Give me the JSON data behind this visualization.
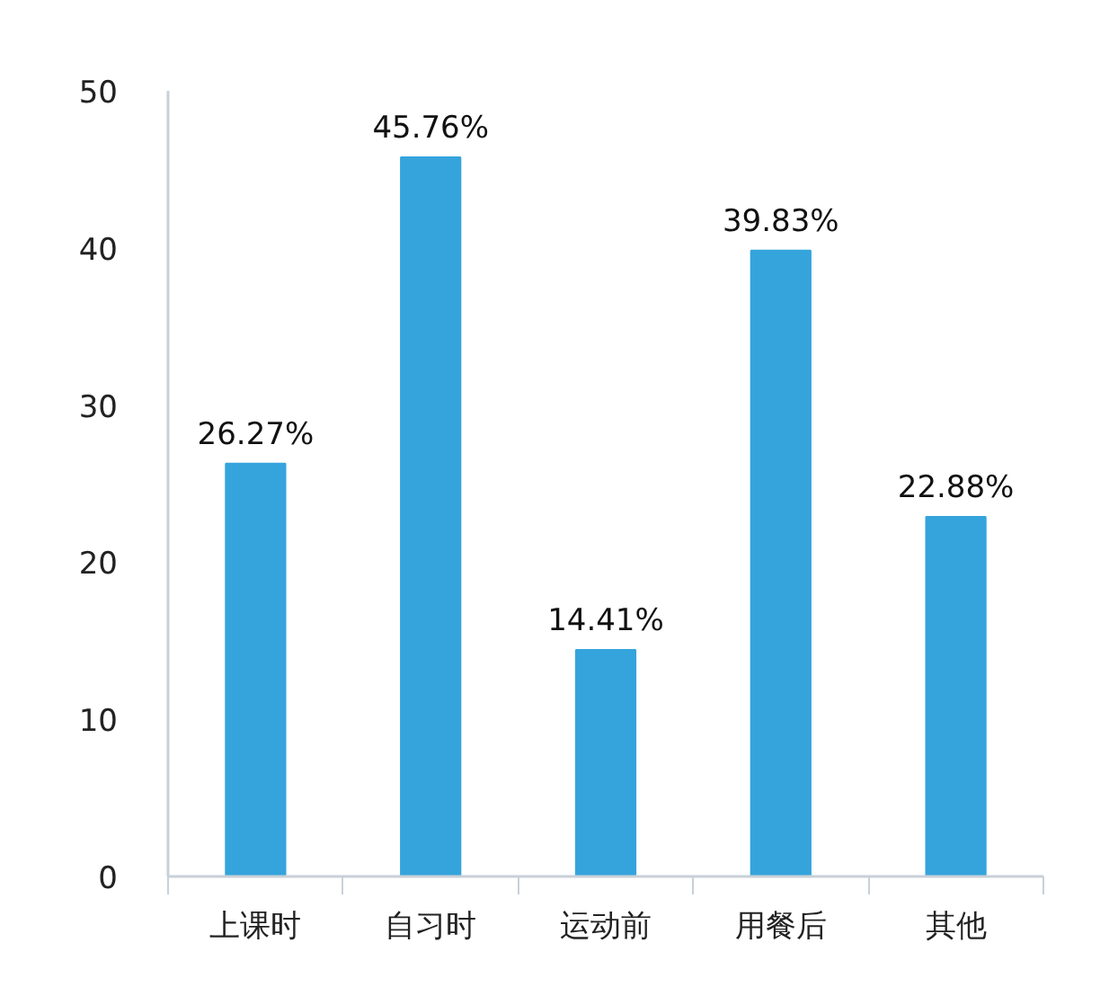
{
  "chart_data": {
    "type": "bar",
    "categories": [
      "上课时",
      "自习时",
      "运动前",
      "用餐后",
      "其他"
    ],
    "values": [
      26.27,
      45.76,
      14.41,
      39.83,
      22.88
    ],
    "value_labels": [
      "26.27%",
      "45.76%",
      "14.41%",
      "39.83%",
      "22.88%"
    ],
    "color": "#35a4dc",
    "ylim": [
      0,
      50
    ],
    "yticks": [
      0,
      10,
      20,
      30,
      40,
      50
    ],
    "grid": false
  }
}
